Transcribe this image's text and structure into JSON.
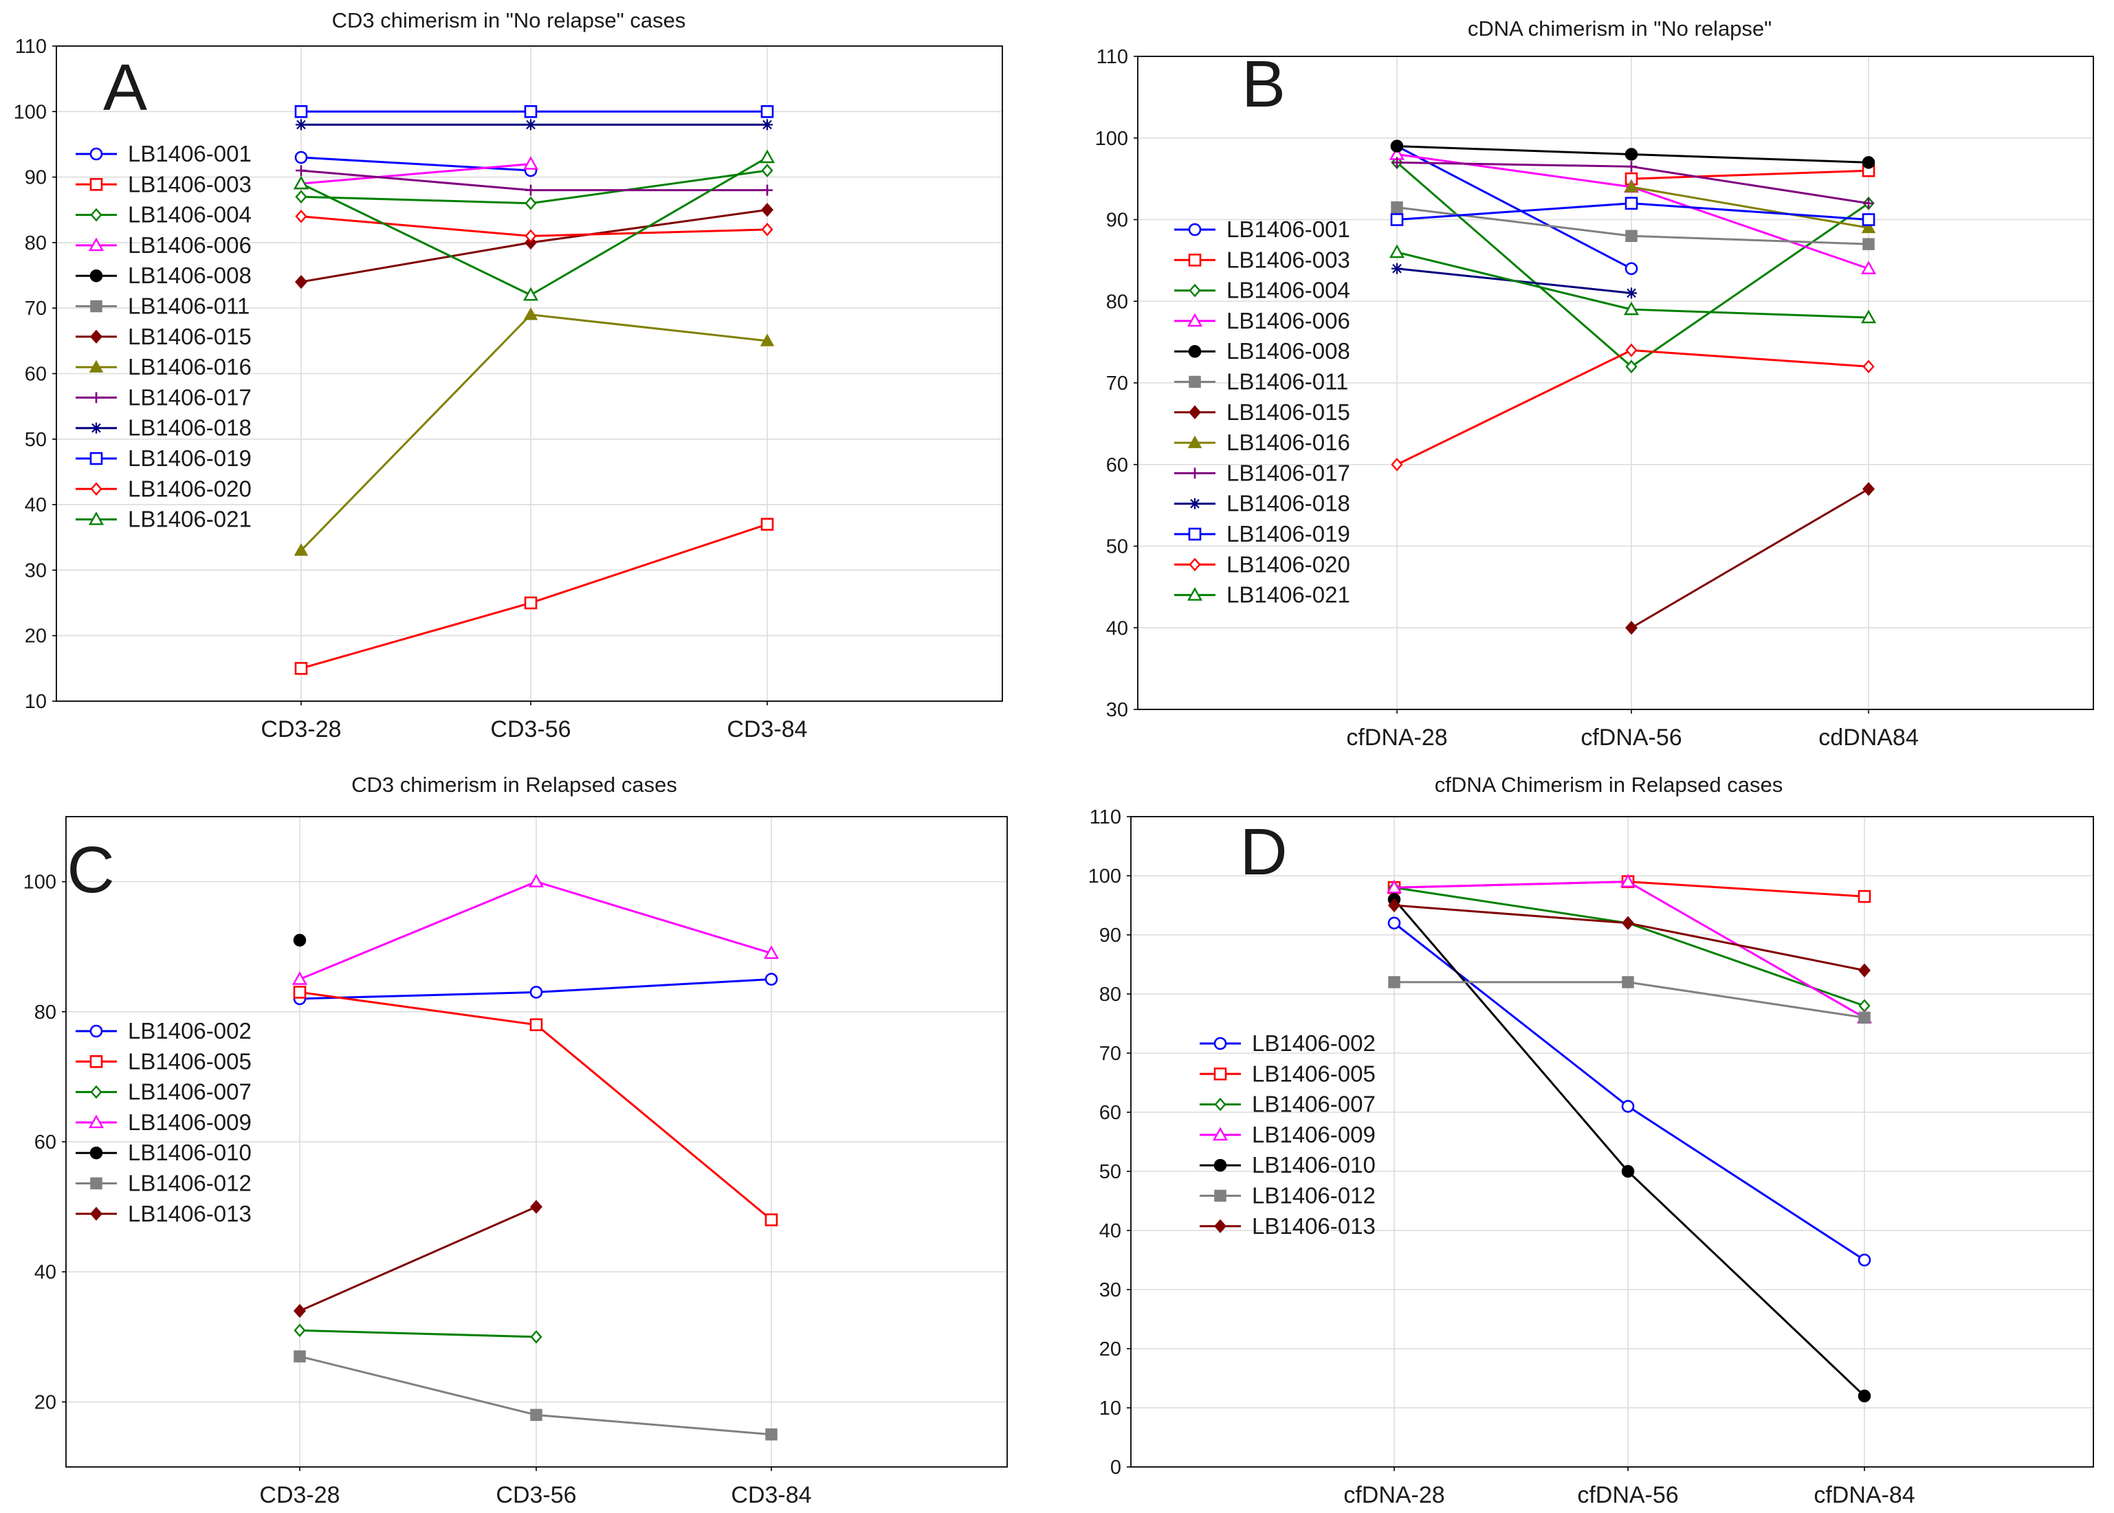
{
  "chart_data": [
    {
      "panel": "A",
      "type": "line",
      "title": "CD3 chimerism in \"No relapse\" cases",
      "xlabel": "",
      "ylabel": "",
      "categories": [
        "CD3-28",
        "CD3-56",
        "CD3-84"
      ],
      "ylim": [
        10,
        110
      ],
      "yticks": [
        10,
        20,
        30,
        40,
        50,
        60,
        70,
        80,
        90,
        100,
        110
      ],
      "grid": true,
      "legend_position": "left",
      "series": [
        {
          "name": "LB1406-001",
          "color": "#0000ff",
          "marker": "circle-open",
          "values": [
            93,
            91,
            null
          ]
        },
        {
          "name": "LB1406-003",
          "color": "#ff0000",
          "marker": "square-open",
          "values": [
            15,
            25,
            37
          ]
        },
        {
          "name": "LB1406-004",
          "color": "#008000",
          "marker": "diamond-open",
          "values": [
            87,
            86,
            91
          ]
        },
        {
          "name": "LB1406-006",
          "color": "#ff00ff",
          "marker": "triangle-open",
          "values": [
            89,
            92,
            null
          ]
        },
        {
          "name": "LB1406-008",
          "color": "#000000",
          "marker": "circle-filled",
          "values": [
            null,
            null,
            null
          ]
        },
        {
          "name": "LB1406-011",
          "color": "#808080",
          "marker": "square-filled",
          "values": [
            null,
            null,
            null
          ]
        },
        {
          "name": "LB1406-015",
          "color": "#800000",
          "marker": "diamond-filled",
          "values": [
            74,
            80,
            85
          ]
        },
        {
          "name": "LB1406-016",
          "color": "#808000",
          "marker": "triangle-filled",
          "values": [
            33,
            69,
            65
          ]
        },
        {
          "name": "LB1406-017",
          "color": "#800080",
          "marker": "plus",
          "values": [
            91,
            88,
            88
          ]
        },
        {
          "name": "LB1406-018",
          "color": "#000080",
          "marker": "star",
          "values": [
            98,
            98,
            98
          ]
        },
        {
          "name": "LB1406-019",
          "color": "#0000ff",
          "marker": "square-open",
          "values": [
            100,
            100,
            100
          ]
        },
        {
          "name": "LB1406-020",
          "color": "#ff0000",
          "marker": "diamond-open",
          "values": [
            84,
            81,
            82
          ]
        },
        {
          "name": "LB1406-021",
          "color": "#008000",
          "marker": "triangle-open",
          "values": [
            89,
            72,
            93
          ]
        }
      ]
    },
    {
      "panel": "B",
      "type": "line",
      "title": "cDNA chimerism in \"No relapse\"",
      "xlabel": "",
      "ylabel": "",
      "categories": [
        "cfDNA-28",
        "cfDNA-56",
        "cdDNA84"
      ],
      "ylim": [
        30,
        110
      ],
      "yticks": [
        30,
        40,
        50,
        60,
        70,
        80,
        90,
        100,
        110
      ],
      "grid": true,
      "legend_position": "left",
      "series": [
        {
          "name": "LB1406-001",
          "color": "#0000ff",
          "marker": "circle-open",
          "values": [
            99,
            84,
            null
          ]
        },
        {
          "name": "LB1406-003",
          "color": "#ff0000",
          "marker": "square-open",
          "values": [
            null,
            95,
            96
          ]
        },
        {
          "name": "LB1406-004",
          "color": "#008000",
          "marker": "diamond-open",
          "values": [
            97,
            72,
            92
          ]
        },
        {
          "name": "LB1406-006",
          "color": "#ff00ff",
          "marker": "triangle-open",
          "values": [
            98,
            94,
            84
          ]
        },
        {
          "name": "LB1406-008",
          "color": "#000000",
          "marker": "circle-filled",
          "values": [
            99,
            98,
            97
          ]
        },
        {
          "name": "LB1406-011",
          "color": "#808080",
          "marker": "square-filled",
          "values": [
            91.5,
            88,
            87
          ]
        },
        {
          "name": "LB1406-015",
          "color": "#800000",
          "marker": "diamond-filled",
          "values": [
            null,
            40,
            57
          ]
        },
        {
          "name": "LB1406-016",
          "color": "#808000",
          "marker": "triangle-filled",
          "values": [
            null,
            94,
            89
          ]
        },
        {
          "name": "LB1406-017",
          "color": "#800080",
          "marker": "plus",
          "values": [
            97,
            96.5,
            92
          ]
        },
        {
          "name": "LB1406-018",
          "color": "#000080",
          "marker": "star",
          "values": [
            84,
            81,
            null
          ]
        },
        {
          "name": "LB1406-019",
          "color": "#0000ff",
          "marker": "square-open",
          "values": [
            90,
            92,
            90
          ]
        },
        {
          "name": "LB1406-020",
          "color": "#ff0000",
          "marker": "diamond-open",
          "values": [
            60,
            74,
            72
          ]
        },
        {
          "name": "LB1406-021",
          "color": "#008000",
          "marker": "triangle-open",
          "values": [
            86,
            79,
            78
          ]
        }
      ]
    },
    {
      "panel": "C",
      "type": "line",
      "title": "CD3 chimerism in Relapsed cases",
      "xlabel": "",
      "ylabel": "",
      "categories": [
        "CD3-28",
        "CD3-56",
        "CD3-84"
      ],
      "ylim": [
        10,
        110
      ],
      "yticks": [
        20,
        40,
        60,
        80,
        100
      ],
      "grid": true,
      "legend_position": "left",
      "series": [
        {
          "name": "LB1406-002",
          "color": "#0000ff",
          "marker": "circle-open",
          "values": [
            82,
            83,
            85
          ]
        },
        {
          "name": "LB1406-005",
          "color": "#ff0000",
          "marker": "square-open",
          "values": [
            83,
            78,
            48
          ]
        },
        {
          "name": "LB1406-007",
          "color": "#008000",
          "marker": "diamond-open",
          "values": [
            31,
            30,
            null
          ]
        },
        {
          "name": "LB1406-009",
          "color": "#ff00ff",
          "marker": "triangle-open",
          "values": [
            85,
            100,
            89
          ]
        },
        {
          "name": "LB1406-010",
          "color": "#000000",
          "marker": "circle-filled",
          "values": [
            91,
            null,
            null
          ]
        },
        {
          "name": "LB1406-012",
          "color": "#808080",
          "marker": "square-filled",
          "values": [
            27,
            18,
            15
          ]
        },
        {
          "name": "LB1406-013",
          "color": "#800000",
          "marker": "diamond-filled",
          "values": [
            34,
            50,
            null
          ]
        }
      ]
    },
    {
      "panel": "D",
      "type": "line",
      "title": "cfDNA Chimerism in Relapsed cases",
      "xlabel": "",
      "ylabel": "",
      "categories": [
        "cfDNA-28",
        "cfDNA-56",
        "cfDNA-84"
      ],
      "ylim": [
        0,
        110
      ],
      "yticks": [
        0,
        10,
        20,
        30,
        40,
        50,
        60,
        70,
        80,
        90,
        100,
        110
      ],
      "grid": true,
      "legend_position": "left",
      "series": [
        {
          "name": "LB1406-002",
          "color": "#0000ff",
          "marker": "circle-open",
          "values": [
            92,
            61,
            35
          ]
        },
        {
          "name": "LB1406-005",
          "color": "#ff0000",
          "marker": "square-open",
          "values": [
            98,
            99,
            96.5
          ]
        },
        {
          "name": "LB1406-007",
          "color": "#008000",
          "marker": "diamond-open",
          "values": [
            98,
            92,
            78
          ]
        },
        {
          "name": "LB1406-009",
          "color": "#ff00ff",
          "marker": "triangle-open",
          "values": [
            98,
            99,
            76
          ]
        },
        {
          "name": "LB1406-010",
          "color": "#000000",
          "marker": "circle-filled",
          "values": [
            96,
            50,
            12
          ]
        },
        {
          "name": "LB1406-012",
          "color": "#808080",
          "marker": "square-filled",
          "values": [
            82,
            82,
            76
          ]
        },
        {
          "name": "LB1406-013",
          "color": "#800000",
          "marker": "diamond-filled",
          "values": [
            95,
            92,
            84
          ]
        }
      ]
    }
  ]
}
